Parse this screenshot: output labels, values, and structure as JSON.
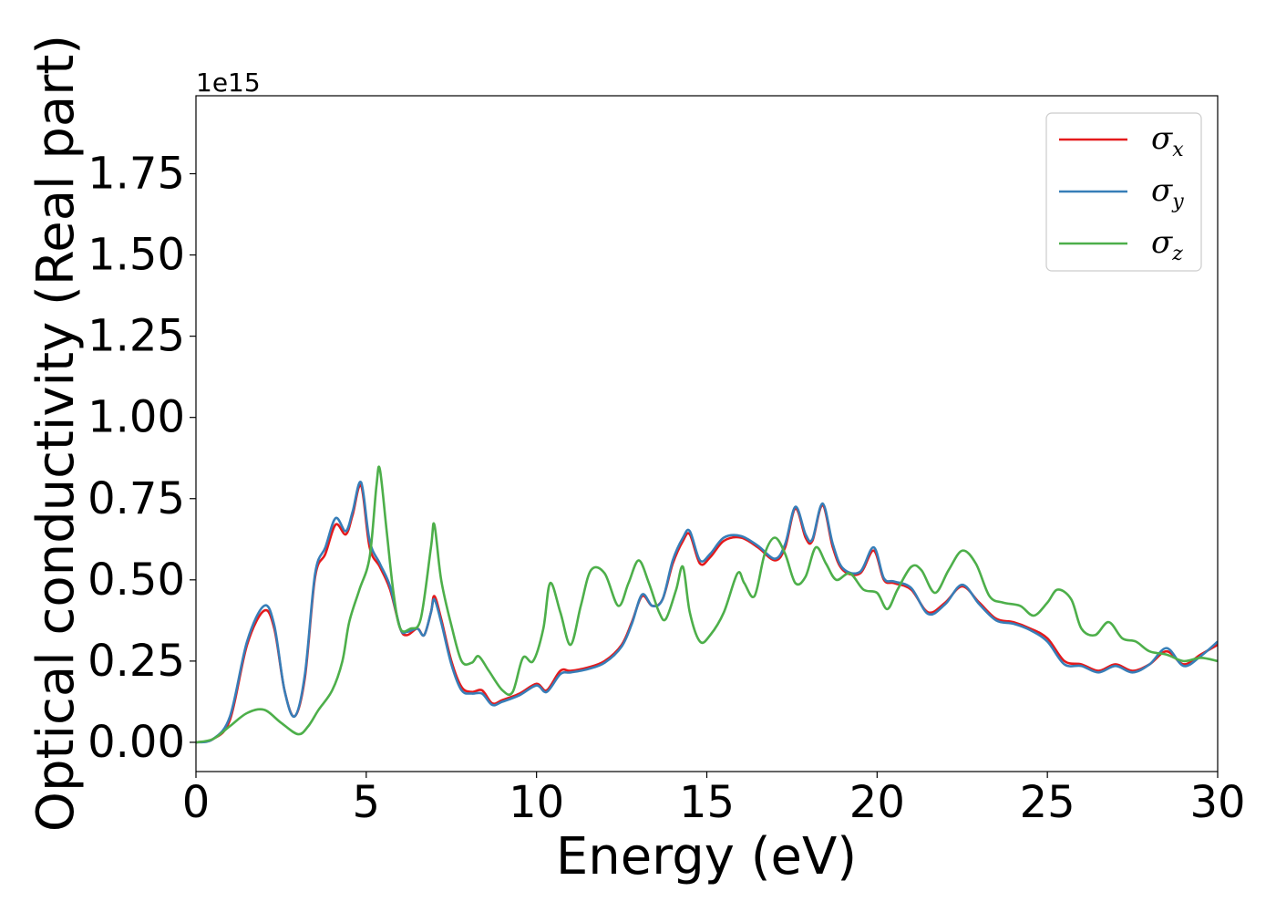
{
  "chart_data": {
    "type": "line",
    "title": "",
    "xlabel": "Energy (eV)",
    "ylabel": "Optical conductivity (Real part)",
    "y_offset_text": "1e15",
    "xlim": [
      0,
      30
    ],
    "ylim": [
      -0.09,
      1.99
    ],
    "x_ticks": [
      0,
      5,
      10,
      15,
      20,
      25,
      30
    ],
    "x_tick_labels": [
      "0",
      "5",
      "10",
      "15",
      "20",
      "25",
      "30"
    ],
    "y_ticks": [
      0.0,
      0.25,
      0.5,
      0.75,
      1.0,
      1.25,
      1.5,
      1.75
    ],
    "y_tick_labels": [
      "0.00",
      "0.25",
      "0.50",
      "0.75",
      "1.00",
      "1.25",
      "1.50",
      "1.75"
    ],
    "grid": false,
    "legend_position": "top-right",
    "series": [
      {
        "name": "σx",
        "legend_base": "σ",
        "legend_sub": "x",
        "color": "#e41a1c",
        "points": [
          [
            0,
            0
          ],
          [
            0.5,
            0.01
          ],
          [
            1,
            0.07
          ],
          [
            1.5,
            0.3
          ],
          [
            2,
            0.405
          ],
          [
            2.3,
            0.35
          ],
          [
            2.6,
            0.16
          ],
          [
            2.9,
            0.08
          ],
          [
            3.2,
            0.2
          ],
          [
            3.5,
            0.51
          ],
          [
            3.8,
            0.58
          ],
          [
            4.1,
            0.67
          ],
          [
            4.4,
            0.64
          ],
          [
            4.6,
            0.7
          ],
          [
            4.85,
            0.79
          ],
          [
            5.1,
            0.6
          ],
          [
            5.4,
            0.54
          ],
          [
            5.7,
            0.47
          ],
          [
            6,
            0.35
          ],
          [
            6.2,
            0.33
          ],
          [
            6.5,
            0.35
          ],
          [
            6.7,
            0.33
          ],
          [
            6.9,
            0.4
          ],
          [
            7.0,
            0.45
          ],
          [
            7.2,
            0.38
          ],
          [
            7.5,
            0.25
          ],
          [
            7.8,
            0.17
          ],
          [
            8.1,
            0.155
          ],
          [
            8.4,
            0.16
          ],
          [
            8.7,
            0.12
          ],
          [
            9,
            0.13
          ],
          [
            9.5,
            0.15
          ],
          [
            10,
            0.18
          ],
          [
            10.3,
            0.16
          ],
          [
            10.7,
            0.22
          ],
          [
            11,
            0.22
          ],
          [
            11.5,
            0.23
          ],
          [
            12,
            0.25
          ],
          [
            12.5,
            0.3
          ],
          [
            12.8,
            0.37
          ],
          [
            13.1,
            0.45
          ],
          [
            13.4,
            0.42
          ],
          [
            13.7,
            0.44
          ],
          [
            14,
            0.55
          ],
          [
            14.3,
            0.62
          ],
          [
            14.5,
            0.64
          ],
          [
            14.8,
            0.55
          ],
          [
            15.1,
            0.57
          ],
          [
            15.5,
            0.62
          ],
          [
            16,
            0.63
          ],
          [
            16.5,
            0.6
          ],
          [
            17,
            0.56
          ],
          [
            17.3,
            0.6
          ],
          [
            17.6,
            0.72
          ],
          [
            17.9,
            0.63
          ],
          [
            18.1,
            0.62
          ],
          [
            18.4,
            0.73
          ],
          [
            18.7,
            0.6
          ],
          [
            19,
            0.53
          ],
          [
            19.5,
            0.52
          ],
          [
            19.9,
            0.59
          ],
          [
            20.2,
            0.5
          ],
          [
            20.5,
            0.49
          ],
          [
            21,
            0.47
          ],
          [
            21.5,
            0.4
          ],
          [
            22,
            0.43
          ],
          [
            22.5,
            0.48
          ],
          [
            23,
            0.43
          ],
          [
            23.5,
            0.38
          ],
          [
            24,
            0.37
          ],
          [
            24.5,
            0.35
          ],
          [
            25,
            0.32
          ],
          [
            25.5,
            0.25
          ],
          [
            26,
            0.24
          ],
          [
            26.5,
            0.22
          ],
          [
            27,
            0.24
          ],
          [
            27.5,
            0.22
          ],
          [
            28,
            0.24
          ],
          [
            28.5,
            0.28
          ],
          [
            29,
            0.24
          ],
          [
            29.5,
            0.27
          ],
          [
            30,
            0.3
          ]
        ]
      },
      {
        "name": "σy",
        "legend_base": "σ",
        "legend_sub": "y",
        "color": "#377eb8",
        "points": [
          [
            0,
            0
          ],
          [
            0.5,
            0.01
          ],
          [
            1,
            0.08
          ],
          [
            1.5,
            0.31
          ],
          [
            2,
            0.42
          ],
          [
            2.3,
            0.36
          ],
          [
            2.6,
            0.16
          ],
          [
            2.9,
            0.08
          ],
          [
            3.2,
            0.21
          ],
          [
            3.5,
            0.52
          ],
          [
            3.8,
            0.6
          ],
          [
            4.1,
            0.69
          ],
          [
            4.4,
            0.65
          ],
          [
            4.6,
            0.71
          ],
          [
            4.85,
            0.8
          ],
          [
            5.1,
            0.62
          ],
          [
            5.4,
            0.55
          ],
          [
            5.7,
            0.48
          ],
          [
            6,
            0.35
          ],
          [
            6.2,
            0.34
          ],
          [
            6.5,
            0.35
          ],
          [
            6.7,
            0.33
          ],
          [
            6.9,
            0.4
          ],
          [
            7.0,
            0.44
          ],
          [
            7.2,
            0.37
          ],
          [
            7.5,
            0.24
          ],
          [
            7.8,
            0.16
          ],
          [
            8.1,
            0.15
          ],
          [
            8.4,
            0.15
          ],
          [
            8.7,
            0.115
          ],
          [
            9,
            0.125
          ],
          [
            9.5,
            0.145
          ],
          [
            10,
            0.175
          ],
          [
            10.3,
            0.155
          ],
          [
            10.7,
            0.21
          ],
          [
            11,
            0.215
          ],
          [
            11.5,
            0.225
          ],
          [
            12,
            0.245
          ],
          [
            12.5,
            0.295
          ],
          [
            12.8,
            0.365
          ],
          [
            13.1,
            0.455
          ],
          [
            13.4,
            0.42
          ],
          [
            13.7,
            0.44
          ],
          [
            14,
            0.56
          ],
          [
            14.3,
            0.63
          ],
          [
            14.5,
            0.65
          ],
          [
            14.8,
            0.56
          ],
          [
            15.1,
            0.58
          ],
          [
            15.5,
            0.63
          ],
          [
            16,
            0.635
          ],
          [
            16.5,
            0.605
          ],
          [
            17,
            0.565
          ],
          [
            17.3,
            0.61
          ],
          [
            17.6,
            0.725
          ],
          [
            17.9,
            0.64
          ],
          [
            18.1,
            0.625
          ],
          [
            18.4,
            0.735
          ],
          [
            18.7,
            0.61
          ],
          [
            19,
            0.535
          ],
          [
            19.5,
            0.525
          ],
          [
            19.9,
            0.6
          ],
          [
            20.2,
            0.505
          ],
          [
            20.5,
            0.495
          ],
          [
            21,
            0.475
          ],
          [
            21.5,
            0.395
          ],
          [
            22,
            0.425
          ],
          [
            22.5,
            0.485
          ],
          [
            23,
            0.425
          ],
          [
            23.5,
            0.375
          ],
          [
            24,
            0.365
          ],
          [
            24.5,
            0.345
          ],
          [
            25,
            0.31
          ],
          [
            25.5,
            0.24
          ],
          [
            26,
            0.235
          ],
          [
            26.5,
            0.215
          ],
          [
            27,
            0.235
          ],
          [
            27.5,
            0.215
          ],
          [
            28,
            0.24
          ],
          [
            28.5,
            0.29
          ],
          [
            29,
            0.235
          ],
          [
            29.5,
            0.265
          ],
          [
            30,
            0.31
          ]
        ]
      },
      {
        "name": "σz",
        "legend_base": "σ",
        "legend_sub": "z",
        "color": "#4daf4a",
        "points": [
          [
            0,
            0
          ],
          [
            0.5,
            0.01
          ],
          [
            1,
            0.05
          ],
          [
            1.5,
            0.09
          ],
          [
            2,
            0.1
          ],
          [
            2.5,
            0.06
          ],
          [
            3,
            0.025
          ],
          [
            3.3,
            0.05
          ],
          [
            3.6,
            0.1
          ],
          [
            4,
            0.16
          ],
          [
            4.3,
            0.25
          ],
          [
            4.5,
            0.37
          ],
          [
            4.8,
            0.47
          ],
          [
            5.1,
            0.57
          ],
          [
            5.3,
            0.79
          ],
          [
            5.4,
            0.84
          ],
          [
            5.6,
            0.65
          ],
          [
            5.8,
            0.46
          ],
          [
            6,
            0.35
          ],
          [
            6.3,
            0.35
          ],
          [
            6.6,
            0.38
          ],
          [
            6.9,
            0.6
          ],
          [
            7.0,
            0.67
          ],
          [
            7.2,
            0.5
          ],
          [
            7.5,
            0.36
          ],
          [
            7.8,
            0.25
          ],
          [
            8.1,
            0.245
          ],
          [
            8.3,
            0.265
          ],
          [
            8.6,
            0.22
          ],
          [
            9.0,
            0.16
          ],
          [
            9.3,
            0.155
          ],
          [
            9.6,
            0.26
          ],
          [
            9.9,
            0.25
          ],
          [
            10.2,
            0.35
          ],
          [
            10.4,
            0.49
          ],
          [
            10.7,
            0.4
          ],
          [
            11,
            0.3
          ],
          [
            11.3,
            0.42
          ],
          [
            11.6,
            0.53
          ],
          [
            12,
            0.52
          ],
          [
            12.4,
            0.42
          ],
          [
            12.7,
            0.49
          ],
          [
            13,
            0.56
          ],
          [
            13.3,
            0.49
          ],
          [
            13.6,
            0.4
          ],
          [
            13.8,
            0.38
          ],
          [
            14.1,
            0.47
          ],
          [
            14.3,
            0.54
          ],
          [
            14.5,
            0.4
          ],
          [
            14.8,
            0.31
          ],
          [
            15.1,
            0.33
          ],
          [
            15.5,
            0.4
          ],
          [
            15.9,
            0.52
          ],
          [
            16.1,
            0.49
          ],
          [
            16.4,
            0.45
          ],
          [
            16.7,
            0.58
          ],
          [
            17,
            0.63
          ],
          [
            17.3,
            0.58
          ],
          [
            17.6,
            0.49
          ],
          [
            17.9,
            0.51
          ],
          [
            18.2,
            0.6
          ],
          [
            18.5,
            0.55
          ],
          [
            18.8,
            0.5
          ],
          [
            19.2,
            0.52
          ],
          [
            19.6,
            0.47
          ],
          [
            20,
            0.46
          ],
          [
            20.3,
            0.41
          ],
          [
            20.6,
            0.47
          ],
          [
            21,
            0.54
          ],
          [
            21.3,
            0.53
          ],
          [
            21.7,
            0.46
          ],
          [
            22.1,
            0.53
          ],
          [
            22.5,
            0.59
          ],
          [
            22.9,
            0.55
          ],
          [
            23.3,
            0.45
          ],
          [
            23.7,
            0.43
          ],
          [
            24.2,
            0.42
          ],
          [
            24.6,
            0.39
          ],
          [
            25,
            0.43
          ],
          [
            25.3,
            0.47
          ],
          [
            25.7,
            0.44
          ],
          [
            26,
            0.35
          ],
          [
            26.4,
            0.33
          ],
          [
            26.8,
            0.37
          ],
          [
            27.2,
            0.32
          ],
          [
            27.6,
            0.31
          ],
          [
            28,
            0.28
          ],
          [
            28.5,
            0.27
          ],
          [
            29,
            0.25
          ],
          [
            29.5,
            0.26
          ],
          [
            30,
            0.25
          ]
        ]
      }
    ]
  }
}
